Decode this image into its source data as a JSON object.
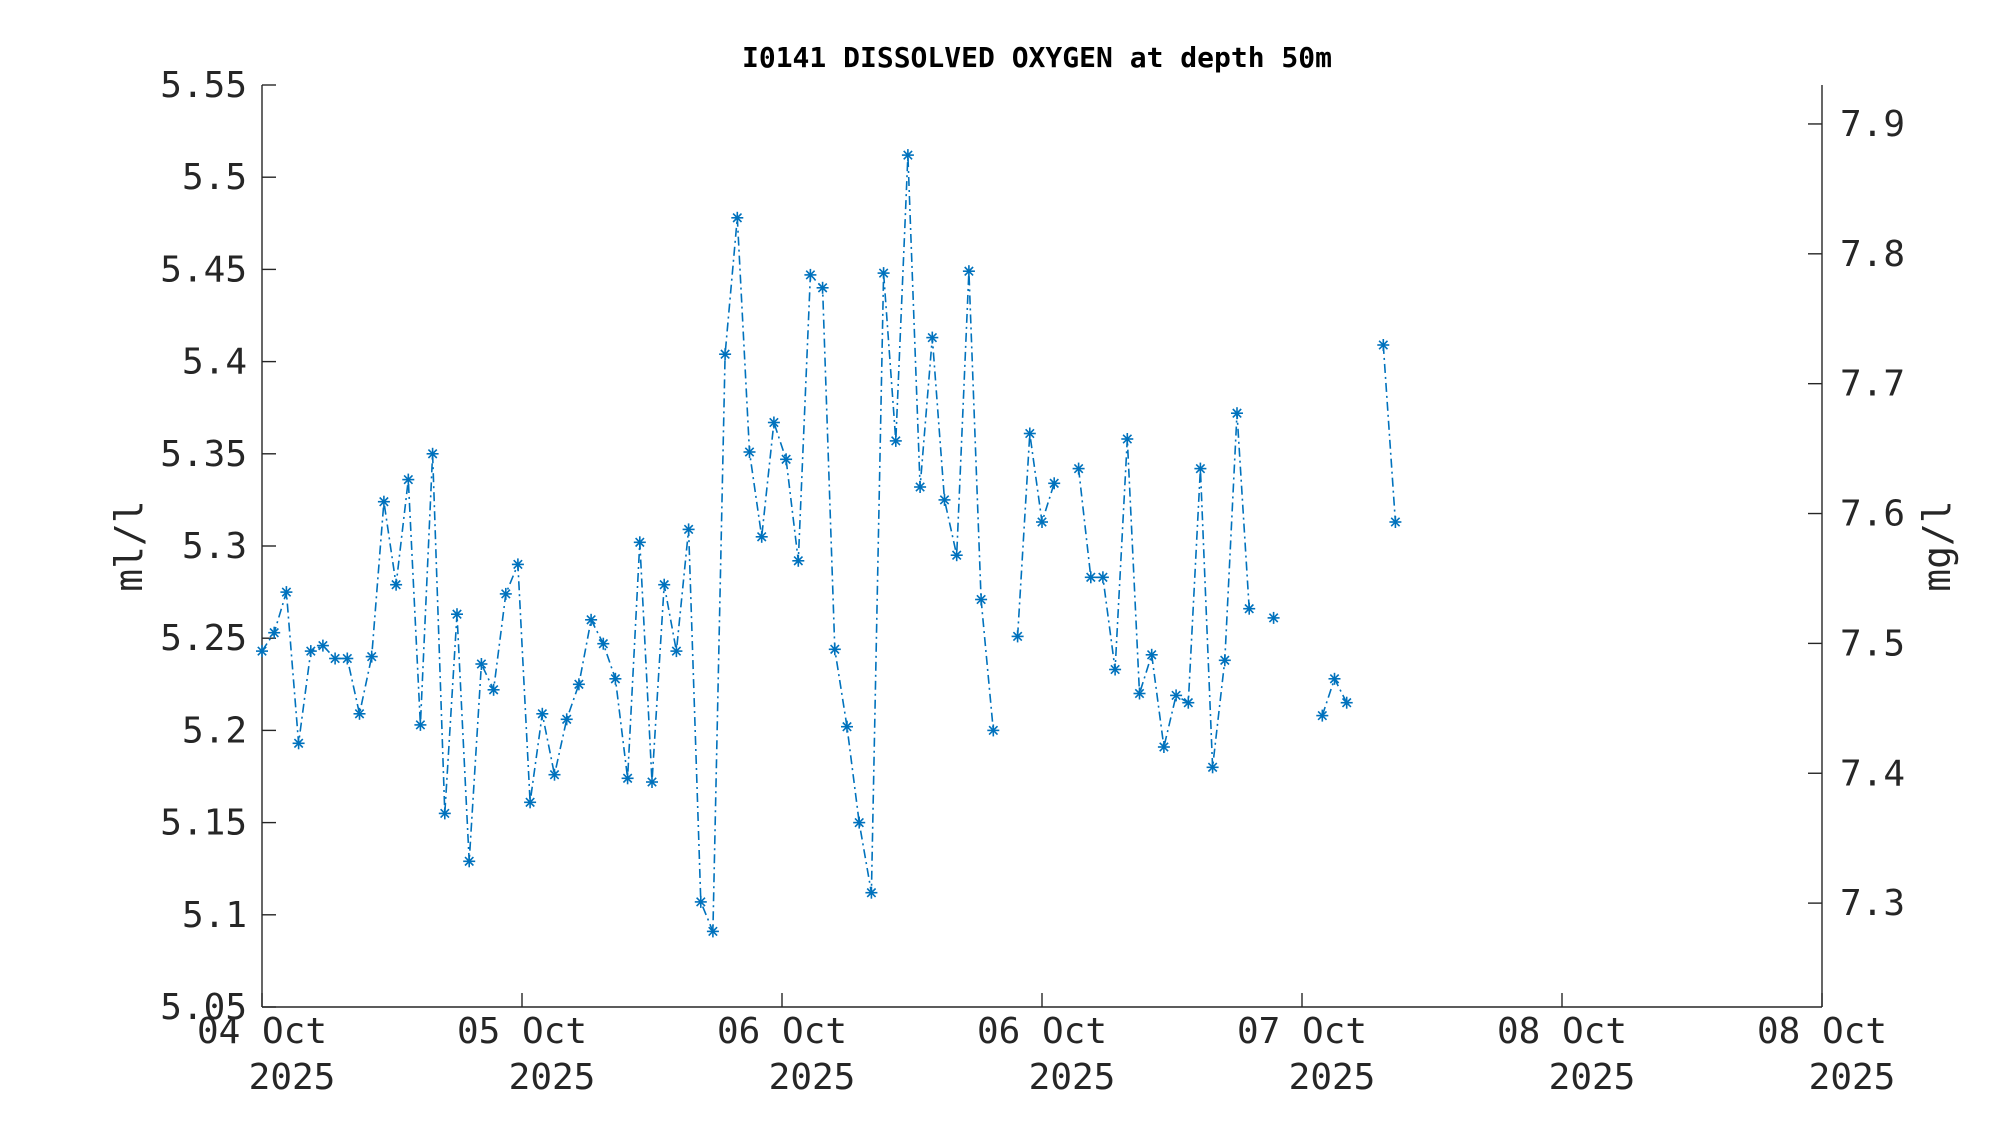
{
  "chart_data": {
    "type": "line",
    "title": "I0141 DISSOLVED OXYGEN at depth 50m",
    "ylabel": "ml/l",
    "y2label": "mg/l",
    "ylim": [
      5.05,
      5.55
    ],
    "y2lim": [
      7.22,
      7.93
    ],
    "yticks": [
      "5.05",
      "5.1",
      "5.15",
      "5.2",
      "5.25",
      "5.3",
      "5.35",
      "5.4",
      "5.45",
      "5.5",
      "5.55"
    ],
    "y2ticks": [
      "7.3",
      "7.4",
      "7.5",
      "7.6",
      "7.7",
      "7.8",
      "7.9"
    ],
    "xlim": [
      "2025-10-04 00:00",
      "2025-10-08 00:00"
    ],
    "xticks": [
      {
        "date": "04 Oct",
        "year": "2025"
      },
      {
        "date": "05 Oct",
        "year": "2025"
      },
      {
        "date": "06 Oct",
        "year": "2025"
      },
      {
        "date": "06 Oct",
        "year": "2025"
      },
      {
        "date": "07 Oct",
        "year": "2025"
      },
      {
        "date": "08 Oct",
        "year": "2025"
      },
      {
        "date": "08 Oct",
        "year": "2025"
      }
    ],
    "grid": false,
    "legend": "none",
    "line_style": "dash-dot",
    "marker": "asterisk",
    "color": "#0072BD",
    "series": [
      {
        "segments": [
          [
            [
              "2025-10-04 00:00",
              5.243
            ],
            [
              "2025-10-04 00:45",
              5.253
            ],
            [
              "2025-10-04 01:30",
              5.275
            ],
            [
              "2025-10-04 02:15",
              5.193
            ],
            [
              "2025-10-04 03:00",
              5.243
            ],
            [
              "2025-10-04 03:45",
              5.246
            ],
            [
              "2025-10-04 04:30",
              5.239
            ],
            [
              "2025-10-04 05:15",
              5.239
            ],
            [
              "2025-10-04 06:00",
              5.209
            ],
            [
              "2025-10-04 06:45",
              5.24
            ],
            [
              "2025-10-04 07:30",
              5.324
            ],
            [
              "2025-10-04 08:15",
              5.279
            ],
            [
              "2025-10-04 09:00",
              5.336
            ],
            [
              "2025-10-04 09:45",
              5.203
            ],
            [
              "2025-10-04 10:30",
              5.35
            ],
            [
              "2025-10-04 11:15",
              5.155
            ],
            [
              "2025-10-04 12:00",
              5.263
            ],
            [
              "2025-10-04 12:45",
              5.129
            ],
            [
              "2025-10-04 13:30",
              5.236
            ],
            [
              "2025-10-04 14:15",
              5.222
            ],
            [
              "2025-10-04 15:00",
              5.274
            ],
            [
              "2025-10-04 15:45",
              5.29
            ],
            [
              "2025-10-04 16:30",
              5.161
            ],
            [
              "2025-10-04 17:15",
              5.209
            ],
            [
              "2025-10-04 18:00",
              5.176
            ],
            [
              "2025-10-04 18:45",
              5.206
            ],
            [
              "2025-10-04 19:30",
              5.225
            ],
            [
              "2025-10-04 20:15",
              5.26
            ],
            [
              "2025-10-04 21:00",
              5.247
            ],
            [
              "2025-10-04 21:45",
              5.228
            ],
            [
              "2025-10-04 22:30",
              5.174
            ],
            [
              "2025-10-04 23:15",
              5.302
            ],
            [
              "2025-10-05 00:00",
              5.172
            ],
            [
              "2025-10-05 00:45",
              5.279
            ],
            [
              "2025-10-05 01:30",
              5.243
            ],
            [
              "2025-10-05 02:15",
              5.309
            ],
            [
              "2025-10-05 03:00",
              5.107
            ],
            [
              "2025-10-05 03:45",
              5.091
            ],
            [
              "2025-10-05 04:30",
              5.404
            ],
            [
              "2025-10-05 05:15",
              5.478
            ],
            [
              "2025-10-05 06:00",
              5.351
            ],
            [
              "2025-10-05 06:45",
              5.305
            ],
            [
              "2025-10-05 07:30",
              5.367
            ],
            [
              "2025-10-05 08:15",
              5.347
            ],
            [
              "2025-10-05 09:00",
              5.292
            ],
            [
              "2025-10-05 09:45",
              5.447
            ],
            [
              "2025-10-05 10:30",
              5.44
            ],
            [
              "2025-10-05 11:15",
              5.244
            ],
            [
              "2025-10-05 12:00",
              5.202
            ],
            [
              "2025-10-05 12:45",
              5.15
            ],
            [
              "2025-10-05 13:30",
              5.112
            ],
            [
              "2025-10-05 14:15",
              5.448
            ],
            [
              "2025-10-05 15:00",
              5.357
            ],
            [
              "2025-10-05 15:45",
              5.512
            ],
            [
              "2025-10-05 16:30",
              5.332
            ],
            [
              "2025-10-05 17:15",
              5.413
            ],
            [
              "2025-10-05 18:00",
              5.325
            ],
            [
              "2025-10-05 18:45",
              5.295
            ],
            [
              "2025-10-05 19:30",
              5.449
            ],
            [
              "2025-10-05 20:15",
              5.271
            ],
            [
              "2025-10-05 21:00",
              5.2
            ]
          ],
          [
            [
              "2025-10-05 22:30",
              5.251
            ],
            [
              "2025-10-05 23:15",
              5.361
            ],
            [
              "2025-10-06 00:00",
              5.313
            ],
            [
              "2025-10-06 00:45",
              5.334
            ]
          ],
          [
            [
              "2025-10-06 02:15",
              5.342
            ],
            [
              "2025-10-06 03:00",
              5.283
            ],
            [
              "2025-10-06 03:45",
              5.283
            ],
            [
              "2025-10-06 04:30",
              5.233
            ],
            [
              "2025-10-06 05:15",
              5.358
            ],
            [
              "2025-10-06 06:00",
              5.22
            ],
            [
              "2025-10-06 06:45",
              5.241
            ],
            [
              "2025-10-06 07:30",
              5.191
            ],
            [
              "2025-10-06 08:15",
              5.219
            ],
            [
              "2025-10-06 09:00",
              5.215
            ],
            [
              "2025-10-06 09:45",
              5.342
            ],
            [
              "2025-10-06 10:30",
              5.18
            ],
            [
              "2025-10-06 11:15",
              5.238
            ],
            [
              "2025-10-06 12:00",
              5.372
            ],
            [
              "2025-10-06 12:45",
              5.266
            ]
          ],
          [
            [
              "2025-10-06 14:15",
              5.261
            ]
          ],
          [
            [
              "2025-10-06 17:15",
              5.208
            ],
            [
              "2025-10-06 18:00",
              5.228
            ],
            [
              "2025-10-06 18:45",
              5.215
            ]
          ],
          [
            [
              "2025-10-06 21:00",
              5.409
            ],
            [
              "2025-10-06 21:45",
              5.313
            ]
          ]
        ]
      }
    ]
  }
}
